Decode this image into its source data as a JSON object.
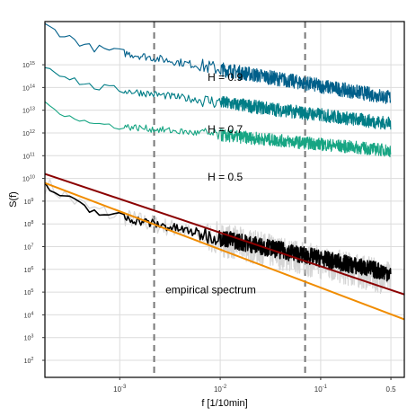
{
  "chart_data": {
    "type": "line",
    "xlabel": "f [1/10min]",
    "ylabel": "S(f)",
    "x_scale": "log",
    "y_scale": "log",
    "xlim": [
      0.00018,
      0.68
    ],
    "ylim_exponents": [
      1.25,
      16.9
    ],
    "grid": true,
    "x_ticks": [
      {
        "value": 0.001,
        "base": "10",
        "exp": "-3"
      },
      {
        "value": 0.01,
        "base": "10",
        "exp": "-2"
      },
      {
        "value": 0.1,
        "base": "10",
        "exp": "-1"
      },
      {
        "value": 0.5,
        "base": "0.5",
        "exp": ""
      }
    ],
    "y_ticks": [
      {
        "exp": 2,
        "base": "10",
        "label": "2"
      },
      {
        "exp": 3,
        "base": "10",
        "label": "3"
      },
      {
        "exp": 4,
        "base": "10",
        "label": "4"
      },
      {
        "exp": 5,
        "base": "10",
        "label": "5"
      },
      {
        "exp": 6,
        "base": "10",
        "label": "6"
      },
      {
        "exp": 7,
        "base": "10",
        "label": "7"
      },
      {
        "exp": 8,
        "base": "10",
        "label": "8"
      },
      {
        "exp": 9,
        "base": "10",
        "label": "9"
      },
      {
        "exp": 10,
        "base": "10",
        "label": "10"
      },
      {
        "exp": 11,
        "base": "10",
        "label": "11"
      },
      {
        "exp": 12,
        "base": "10",
        "label": "12"
      },
      {
        "exp": 13,
        "base": "10",
        "label": "13"
      },
      {
        "exp": 14,
        "base": "10",
        "label": "14"
      },
      {
        "exp": 15,
        "base": "10",
        "label": "15"
      }
    ],
    "vlines": [
      0.0022,
      0.07
    ],
    "series": [
      {
        "color": "#005f8a",
        "log_level_low": 16.1,
        "slope": -0.74,
        "noise": 0.32,
        "label": "H = 0.9"
      },
      {
        "color": "#007d86",
        "log_level_low": 14.3,
        "slope": -0.55,
        "noise": 0.3,
        "label": "H = 0.7"
      },
      {
        "color": "#17a583",
        "log_level_low": 12.6,
        "slope": -0.4,
        "noise": 0.28,
        "label": "H = 0.5"
      },
      {
        "color": "#000000",
        "log_level_low": 9.0,
        "slope": -0.92,
        "noise": 0.38,
        "label": "empirical spectrum"
      },
      {
        "color": "#d5d5d5",
        "log_level_low": 9.1,
        "slope": -1.02,
        "noise": 0.75,
        "label": ""
      }
    ],
    "fit_lines": [
      {
        "color": "#8b0000",
        "x": [
          0.00018,
          0.68
        ],
        "log_y": [
          10.2,
          4.9
        ]
      },
      {
        "color": "#f08c00",
        "x": [
          0.00018,
          0.68
        ],
        "log_y": [
          9.8,
          3.8
        ]
      }
    ],
    "annotations": [
      {
        "text": "H = 0.9",
        "x": 0.0075,
        "log_y": 14.3
      },
      {
        "text": "H = 0.7",
        "x": 0.0075,
        "log_y": 12.0
      },
      {
        "text": "H = 0.5",
        "x": 0.0075,
        "log_y": 9.9
      },
      {
        "text": "empirical spectrum",
        "x": 0.00285,
        "log_y": 4.95
      }
    ]
  }
}
